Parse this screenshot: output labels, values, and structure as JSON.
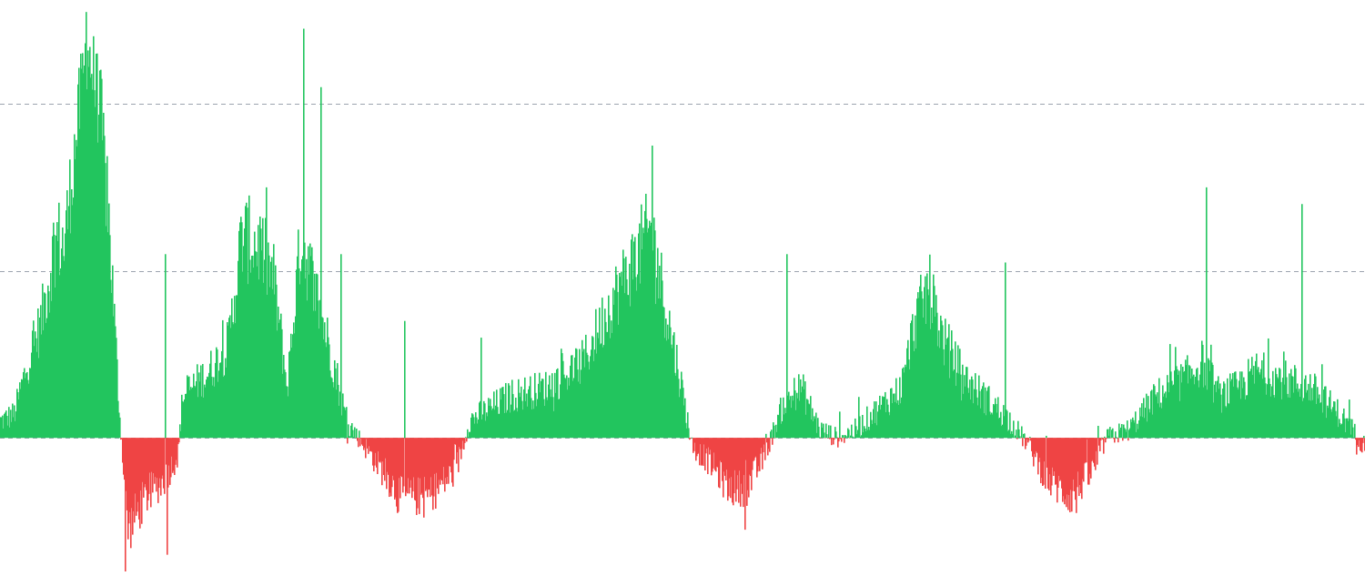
{
  "chart_data": {
    "type": "bar",
    "title": "",
    "xlabel": "",
    "ylabel": "",
    "ylim": [
      -0.8,
      2.6
    ],
    "baseline": 0,
    "gridlines": [
      0,
      1,
      2
    ],
    "grid": true,
    "grid_style": "dashed",
    "legend": "none",
    "colors": {
      "positive": "#22c55e",
      "negative": "#ef4444",
      "grid": "#9ca3af"
    },
    "series": [
      {
        "x_count": 1500,
        "anchors": [
          [
            0,
            0.1
          ],
          [
            15,
            0.14
          ],
          [
            30,
            0.45
          ],
          [
            45,
            0.7
          ],
          [
            60,
            1.2
          ],
          [
            70,
            1.15
          ],
          [
            85,
            1.9
          ],
          [
            95,
            2.35
          ],
          [
            110,
            1.95
          ],
          [
            120,
            1.2
          ],
          [
            130,
            0.2
          ],
          [
            140,
            -0.55
          ],
          [
            160,
            -0.35
          ],
          [
            180,
            -0.25
          ],
          [
            195,
            -0.1
          ],
          [
            200,
            0.25
          ],
          [
            230,
            0.4
          ],
          [
            250,
            0.55
          ],
          [
            265,
            1.2
          ],
          [
            285,
            1.15
          ],
          [
            300,
            0.95
          ],
          [
            315,
            0.3
          ],
          [
            330,
            1.2
          ],
          [
            345,
            0.9
          ],
          [
            370,
            0.35
          ],
          [
            380,
            0.1
          ],
          [
            400,
            -0.05
          ],
          [
            420,
            -0.2
          ],
          [
            440,
            -0.35
          ],
          [
            470,
            -0.35
          ],
          [
            500,
            -0.2
          ],
          [
            515,
            0.1
          ],
          [
            530,
            0.15
          ],
          [
            560,
            0.25
          ],
          [
            600,
            0.3
          ],
          [
            640,
            0.45
          ],
          [
            670,
            0.8
          ],
          [
            700,
            1.1
          ],
          [
            715,
            1.25
          ],
          [
            730,
            0.8
          ],
          [
            745,
            0.4
          ],
          [
            760,
            -0.05
          ],
          [
            780,
            -0.15
          ],
          [
            800,
            -0.3
          ],
          [
            820,
            -0.3
          ],
          [
            840,
            -0.1
          ],
          [
            860,
            0.2
          ],
          [
            880,
            0.3
          ],
          [
            900,
            0.05
          ],
          [
            920,
            0.0
          ],
          [
            940,
            0.05
          ],
          [
            960,
            0.15
          ],
          [
            990,
            0.3
          ],
          [
            1005,
            0.7
          ],
          [
            1020,
            0.9
          ],
          [
            1035,
            0.6
          ],
          [
            1060,
            0.35
          ],
          [
            1090,
            0.2
          ],
          [
            1110,
            0.1
          ],
          [
            1130,
            -0.05
          ],
          [
            1150,
            -0.25
          ],
          [
            1175,
            -0.35
          ],
          [
            1200,
            -0.2
          ],
          [
            1215,
            0.0
          ],
          [
            1240,
            0.05
          ],
          [
            1270,
            0.25
          ],
          [
            1300,
            0.35
          ],
          [
            1320,
            0.45
          ],
          [
            1340,
            0.25
          ],
          [
            1360,
            0.3
          ],
          [
            1380,
            0.4
          ],
          [
            1410,
            0.35
          ],
          [
            1440,
            0.3
          ],
          [
            1470,
            0.15
          ],
          [
            1485,
            0.05
          ],
          [
            1499,
            -0.05
          ]
        ],
        "spikes": [
          [
            94,
            2.55
          ],
          [
            105,
            2.3
          ],
          [
            181,
            1.1
          ],
          [
            333,
            2.45
          ],
          [
            352,
            2.1
          ],
          [
            374,
            1.1
          ],
          [
            444,
            0.7
          ],
          [
            528,
            0.6
          ],
          [
            716,
            1.75
          ],
          [
            864,
            1.1
          ],
          [
            1104,
            1.05
          ],
          [
            1325,
            1.5
          ],
          [
            1430,
            1.4
          ],
          [
            137,
            -0.8
          ],
          [
            183,
            -0.7
          ],
          [
            436,
            -0.45
          ],
          [
            818,
            -0.55
          ],
          [
            1182,
            -0.45
          ],
          [
            1490,
            -0.1
          ],
          [
            54,
            0.75
          ],
          [
            60,
            0.9
          ]
        ]
      }
    ]
  }
}
